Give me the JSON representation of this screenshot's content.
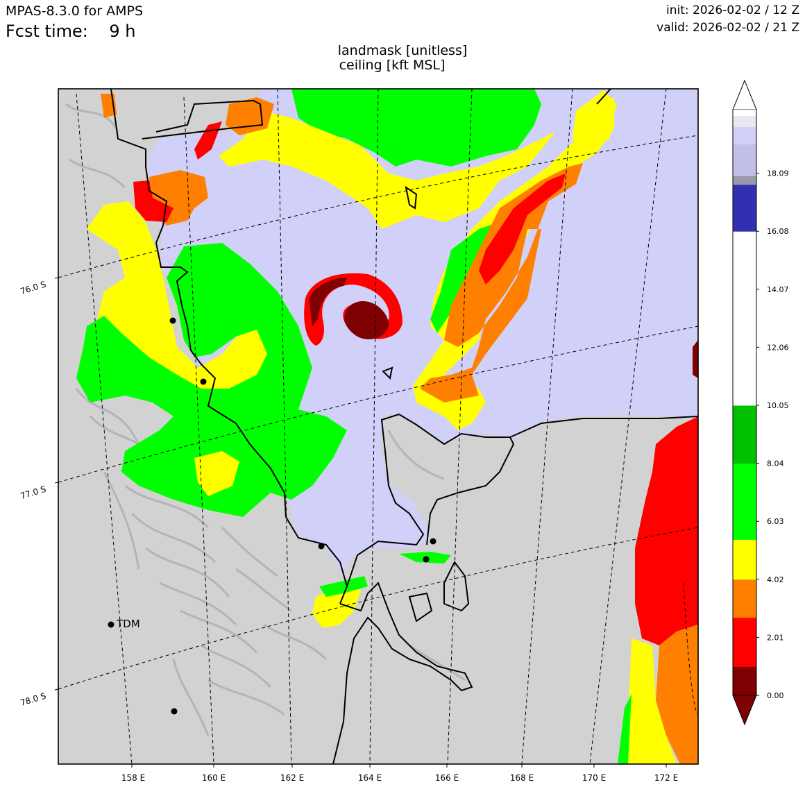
{
  "header": {
    "model": "MPAS-8.3.0 for AMPS",
    "fcst_label": "Fcst time:",
    "fcst_value": "9 h",
    "init": "init: 2026-02-02 / 12 Z",
    "valid": "valid: 2026-02-02 / 21 Z"
  },
  "titles": {
    "line1": "landmask [unitless]",
    "line2": "ceiling [kft MSL]"
  },
  "map": {
    "lon_labels": [
      "158 E",
      "160 E",
      "162 E",
      "164 E",
      "166 E",
      "168 E",
      "170 E",
      "172 E"
    ],
    "lat_labels": [
      "76.0 S",
      "77.0 S",
      "78.0 S"
    ],
    "stations": [
      {
        "label": "TDM"
      }
    ],
    "colors": {
      "ocean": "#d0d0f8",
      "land": "#d2d2d2",
      "frame": "#000000"
    }
  },
  "colorbar": {
    "tick_labels": [
      "0.00",
      "2.01",
      "4.02",
      "6.03",
      "8.04",
      "10.05",
      "12.06",
      "14.07",
      "16.08",
      "18.09"
    ],
    "bands": [
      {
        "min": 0.0,
        "max": 1.0,
        "color": "#7f0000"
      },
      {
        "min": 1.0,
        "max": 2.7,
        "color": "#ff0000"
      },
      {
        "min": 2.7,
        "max": 4.02,
        "color": "#ff8000"
      },
      {
        "min": 4.02,
        "max": 5.4,
        "color": "#ffff00"
      },
      {
        "min": 5.4,
        "max": 8.04,
        "color": "#00ff00"
      },
      {
        "min": 8.04,
        "max": 10.05,
        "color": "#00c000"
      },
      {
        "min": 10.05,
        "max": 16.08,
        "color": "#ffffff"
      },
      {
        "min": 16.08,
        "max": 17.7,
        "color": "#3030b0"
      },
      {
        "min": 17.7,
        "max": 18.0,
        "color": "#9a9aa8"
      },
      {
        "min": 18.0,
        "max": 19.1,
        "color": "#c0c0e8"
      },
      {
        "min": 19.1,
        "max": 19.7,
        "color": "#d0d0f8"
      },
      {
        "min": 19.7,
        "max": 20.1,
        "color": "#e8e8f0"
      }
    ],
    "range": [
      0,
      20.1
    ]
  }
}
